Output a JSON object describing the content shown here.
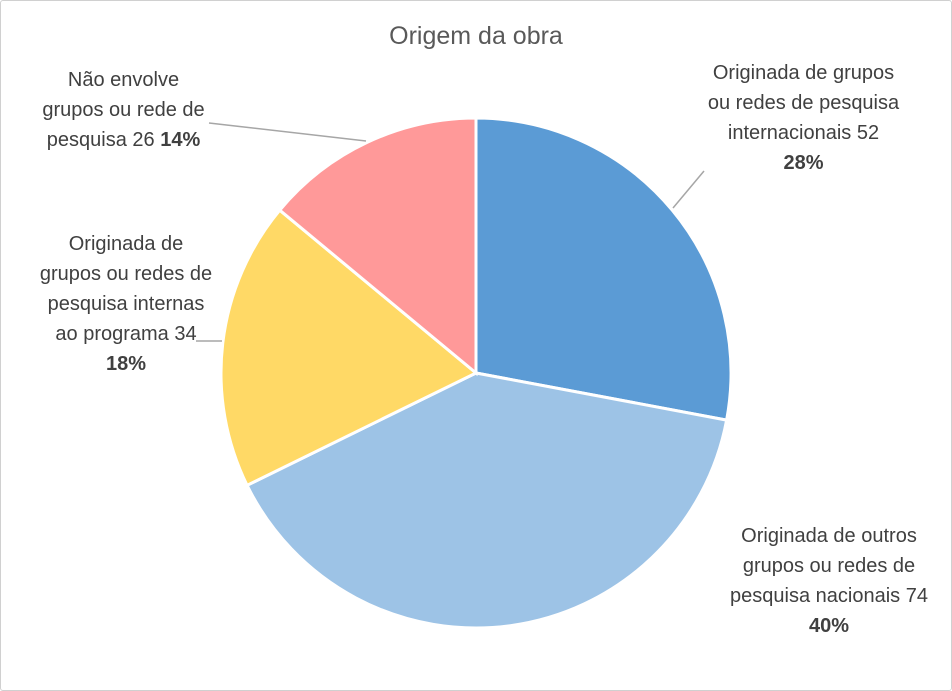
{
  "chart_data": {
    "type": "pie",
    "title": "Origem da obra",
    "categories": [
      "Originada de grupos ou redes de pesquisa internacionais",
      "Originada de outros grupos ou redes de pesquisa nacionais",
      "Originada de grupos ou redes de pesquisa internas ao programa",
      "Não envolve grupos ou rede de pesquisa"
    ],
    "values": [
      52,
      74,
      34,
      26
    ],
    "percent_labels": [
      "28%",
      "40%",
      "18%",
      "14%"
    ],
    "colors": [
      "#5b9bd5",
      "#9dc3e6",
      "#ffd966",
      "#ff9999"
    ]
  }
}
